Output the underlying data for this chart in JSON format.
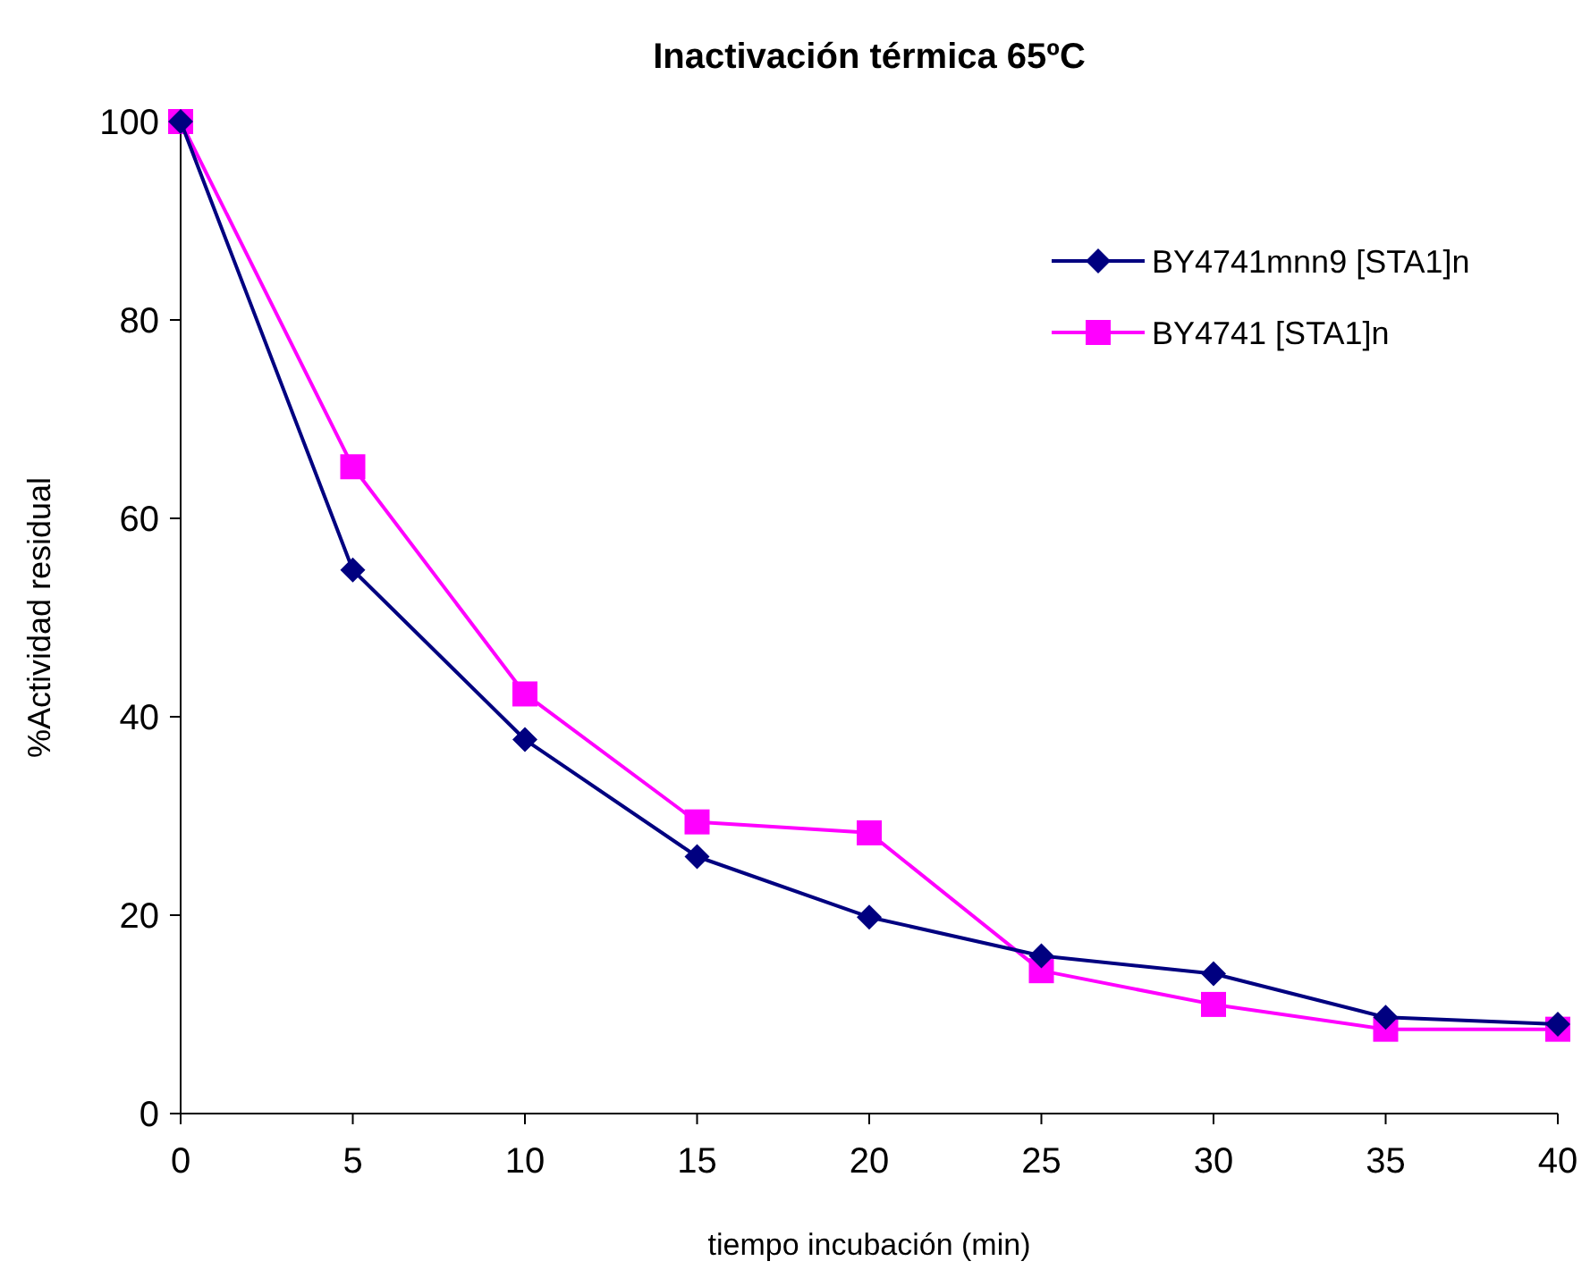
{
  "chart_data": {
    "type": "line",
    "title": "Inactivación térmica 65ºC",
    "xlabel": "tiempo incubación (min)",
    "ylabel": "%Actividad residual",
    "x": [
      0,
      5,
      10,
      15,
      20,
      25,
      30,
      35,
      40
    ],
    "series": [
      {
        "name": "BY4741mnn9 [STA1]n",
        "color": "#000080",
        "marker": "diamond",
        "values": [
          100,
          54.8,
          37.7,
          25.9,
          19.8,
          15.9,
          14.1,
          9.7,
          9.0
        ]
      },
      {
        "name": "BY4741 [STA1]n",
        "color": "#ff00ff",
        "marker": "square",
        "values": [
          100,
          65.2,
          42.3,
          29.4,
          28.3,
          14.4,
          11.0,
          8.5,
          8.5
        ]
      }
    ],
    "xlim": [
      0,
      40
    ],
    "xticks": [
      0,
      5,
      10,
      15,
      20,
      25,
      30,
      35,
      40
    ],
    "ylim": [
      0,
      100
    ],
    "yticks": [
      0,
      20,
      40,
      60,
      80,
      100
    ],
    "grid": false,
    "legend": "top right",
    "line_style": "solid"
  }
}
